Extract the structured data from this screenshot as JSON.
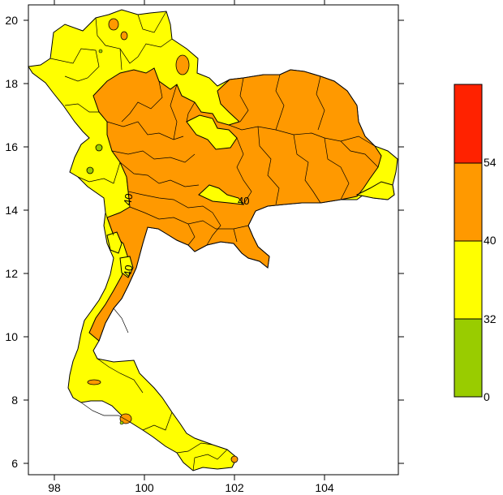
{
  "map": {
    "x_ticks": [
      "98",
      "100",
      "102",
      "104"
    ],
    "y_ticks": [
      "20",
      "18",
      "16",
      "14",
      "12",
      "10",
      "8",
      "6"
    ],
    "contour_labels": [
      "40",
      "40",
      "40"
    ]
  },
  "legend": {
    "bins": [
      {
        "from": 0,
        "to": 32,
        "color": "#99cc00"
      },
      {
        "from": 32,
        "to": 40,
        "color": "#ffff00"
      },
      {
        "from": 40,
        "to": 54,
        "color": "#ff9900"
      },
      {
        "from": 54,
        "to": null,
        "color": "#ff2200"
      }
    ],
    "labels": [
      "54",
      "40",
      "32",
      "0"
    ]
  }
}
